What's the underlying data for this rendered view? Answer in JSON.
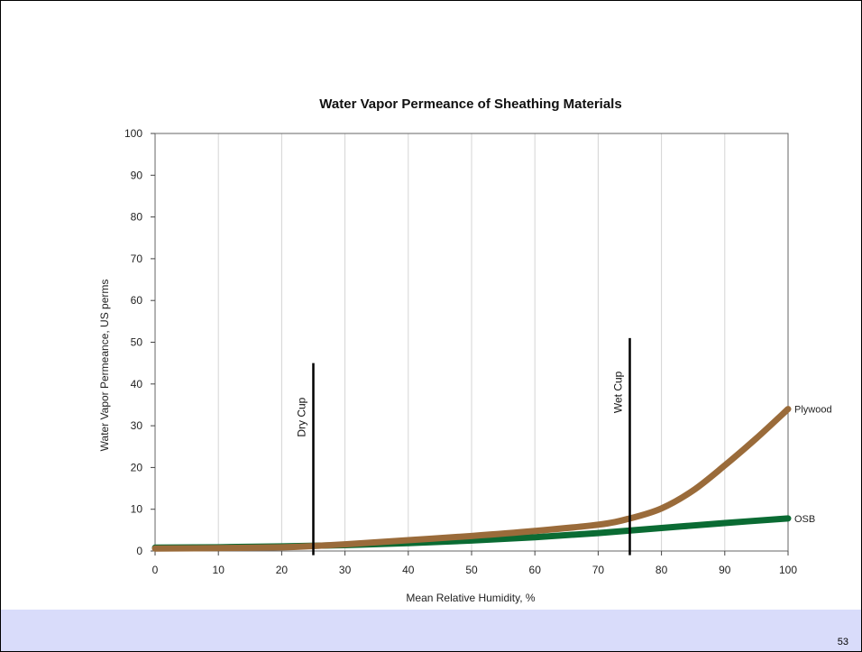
{
  "slide": {
    "page_number": "53"
  },
  "chart_data": {
    "type": "line",
    "title": "Water Vapor Permeance of Sheathing Materials",
    "xlabel": "Mean Relative Humidity, %",
    "ylabel": "Water Vapor Permeance, US perms",
    "xlim": [
      0,
      100
    ],
    "ylim": [
      0,
      100
    ],
    "x_ticks": [
      0,
      10,
      20,
      30,
      40,
      50,
      60,
      70,
      80,
      90,
      100
    ],
    "y_ticks": [
      0,
      10,
      20,
      30,
      40,
      50,
      60,
      70,
      80,
      90,
      100
    ],
    "grid": "vertical",
    "series": [
      {
        "name": "OSB",
        "color": "#0a6b33",
        "x": [
          0,
          10,
          20,
          30,
          40,
          50,
          60,
          70,
          80,
          90,
          100
        ],
        "values": [
          0.8,
          0.9,
          1.1,
          1.4,
          1.9,
          2.5,
          3.3,
          4.3,
          5.5,
          6.7,
          7.8
        ]
      },
      {
        "name": "Plywood",
        "color": "#9a6b3a",
        "x": [
          0,
          10,
          20,
          25,
          30,
          40,
          50,
          60,
          70,
          75,
          80,
          85,
          90,
          95,
          100
        ],
        "values": [
          0.6,
          0.7,
          0.9,
          1.2,
          1.6,
          2.6,
          3.6,
          4.8,
          6.3,
          7.8,
          10.2,
          14.5,
          20.5,
          27.0,
          34.0
        ]
      }
    ],
    "markers": [
      {
        "label": "Dry Cup",
        "x": 25,
        "y_top": 45
      },
      {
        "label": "Wet Cup",
        "x": 75,
        "y_top": 51
      }
    ]
  }
}
